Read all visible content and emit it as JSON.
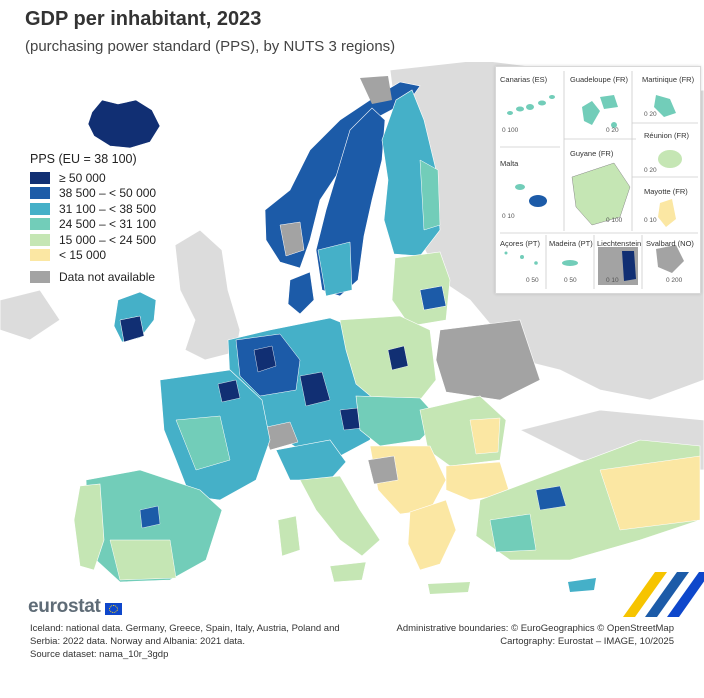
{
  "title": "GDP per inhabitant, 2023",
  "subtitle": "(purchasing power standard (PPS), by NUTS 3 regions)",
  "legend": {
    "title": "PPS (EU = 38 100)",
    "items": [
      {
        "label": "≥ 50 000",
        "color": "#112f73"
      },
      {
        "label": "38 500 – < 50 000",
        "color": "#1c5ba8"
      },
      {
        "label": "31 100 – < 38 500",
        "color": "#45b0c8"
      },
      {
        "label": "24 500 – < 31 100",
        "color": "#72cdb9"
      },
      {
        "label": "15 000 – < 24 500",
        "color": "#c5e6b4"
      },
      {
        "label": "< 15 000",
        "color": "#fbe7a3"
      }
    ],
    "not_available": {
      "label": "Data not available",
      "color": "#a3a3a3"
    }
  },
  "insets": {
    "canarias": "Canarias (ES)",
    "guadeloupe": "Guadeloupe (FR)",
    "martinique": "Martinique (FR)",
    "reunion": "Réunion (FR)",
    "malta": "Malta",
    "guyane": "Guyane (FR)",
    "mayotte": "Mayotte (FR)",
    "acores": "Açores (PT)",
    "madeira": "Madeira (PT)",
    "liechtenstein": "Liechtenstein",
    "svalbard": "Svalbard (NO)",
    "scales": {
      "canarias": "0   100",
      "guadeloupe": "0  20",
      "martinique": "0  20",
      "reunion": "0  20",
      "malta": "0  10",
      "guyane": "0   100",
      "mayotte": "0  10",
      "acores": "0  50",
      "madeira": "0   50",
      "liechtenstein": "0  10",
      "svalbard": "0   200"
    }
  },
  "logo": "eurostat",
  "footnote": {
    "line1": "Iceland: national data. Germany, Greece, Spain, Italy, Austria, Poland and",
    "line2": "Serbia: 2022 data. Norway and Albania: 2021 data.",
    "line3": "Source dataset: nama_10r_3gdp"
  },
  "credits": {
    "line1": "Administrative boundaries: © EuroGeographics © OpenStreetMap",
    "line2": "Cartography: Eurostat – IMAGE, 10/2025"
  }
}
